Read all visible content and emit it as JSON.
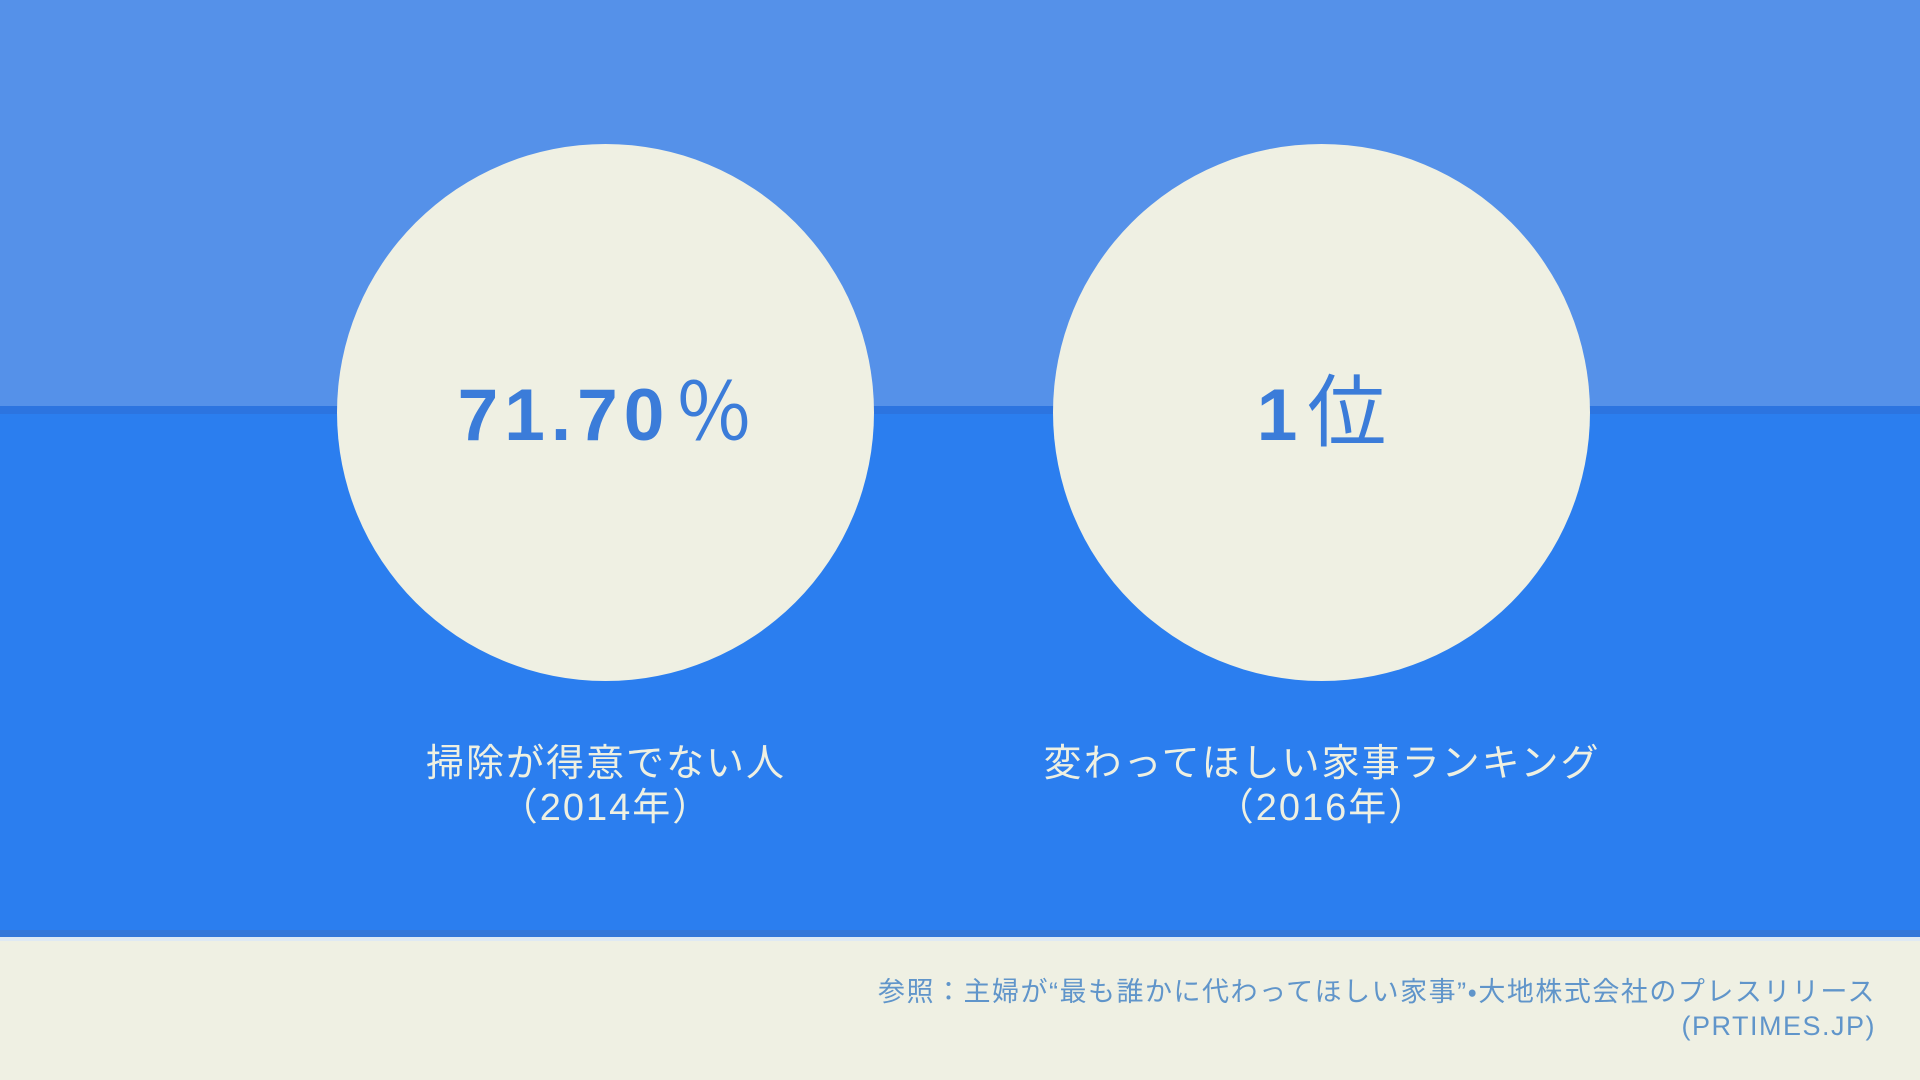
{
  "palette": {
    "background_top": "#5591E9",
    "background_bottom": "#2B7EEF",
    "band_divider": "#2C74E0",
    "footer_background": "#EFF0E3",
    "circle_fill": "#EFF0E3",
    "stat_text": "#3B7CD9",
    "label_text": "#EEF0E2",
    "source_text": "#6095CA"
  },
  "stats": [
    {
      "value": "71.70",
      "unit": "％",
      "label_line1": "掃除が得意でない人",
      "label_line2": "（2014年）"
    },
    {
      "value": "1",
      "unit": "位",
      "label_line1": "変わってほしい家事ランキング",
      "label_line2": "（2016年）"
    }
  ],
  "source": {
    "line1": "参照：主婦が“最も誰かに代わってほしい家事”・大地株式会社のプレスリリース",
    "line2": "(PRTIMES.JP)"
  },
  "chart_data": {
    "type": "kpi",
    "items": [
      {
        "value": 71.7,
        "unit": "％",
        "label": "掃除が得意でない人",
        "period": "2014年"
      },
      {
        "value": 1,
        "unit": "位",
        "label": "変わってほしい家事ランキング",
        "period": "2016年"
      }
    ],
    "source": "参照：主婦が“最も誰かに代わってほしい家事”・大地株式会社のプレスリリース (PRTIMES.JP)",
    "layout": "two cream circles on split blue background, source footer bottom-right"
  }
}
